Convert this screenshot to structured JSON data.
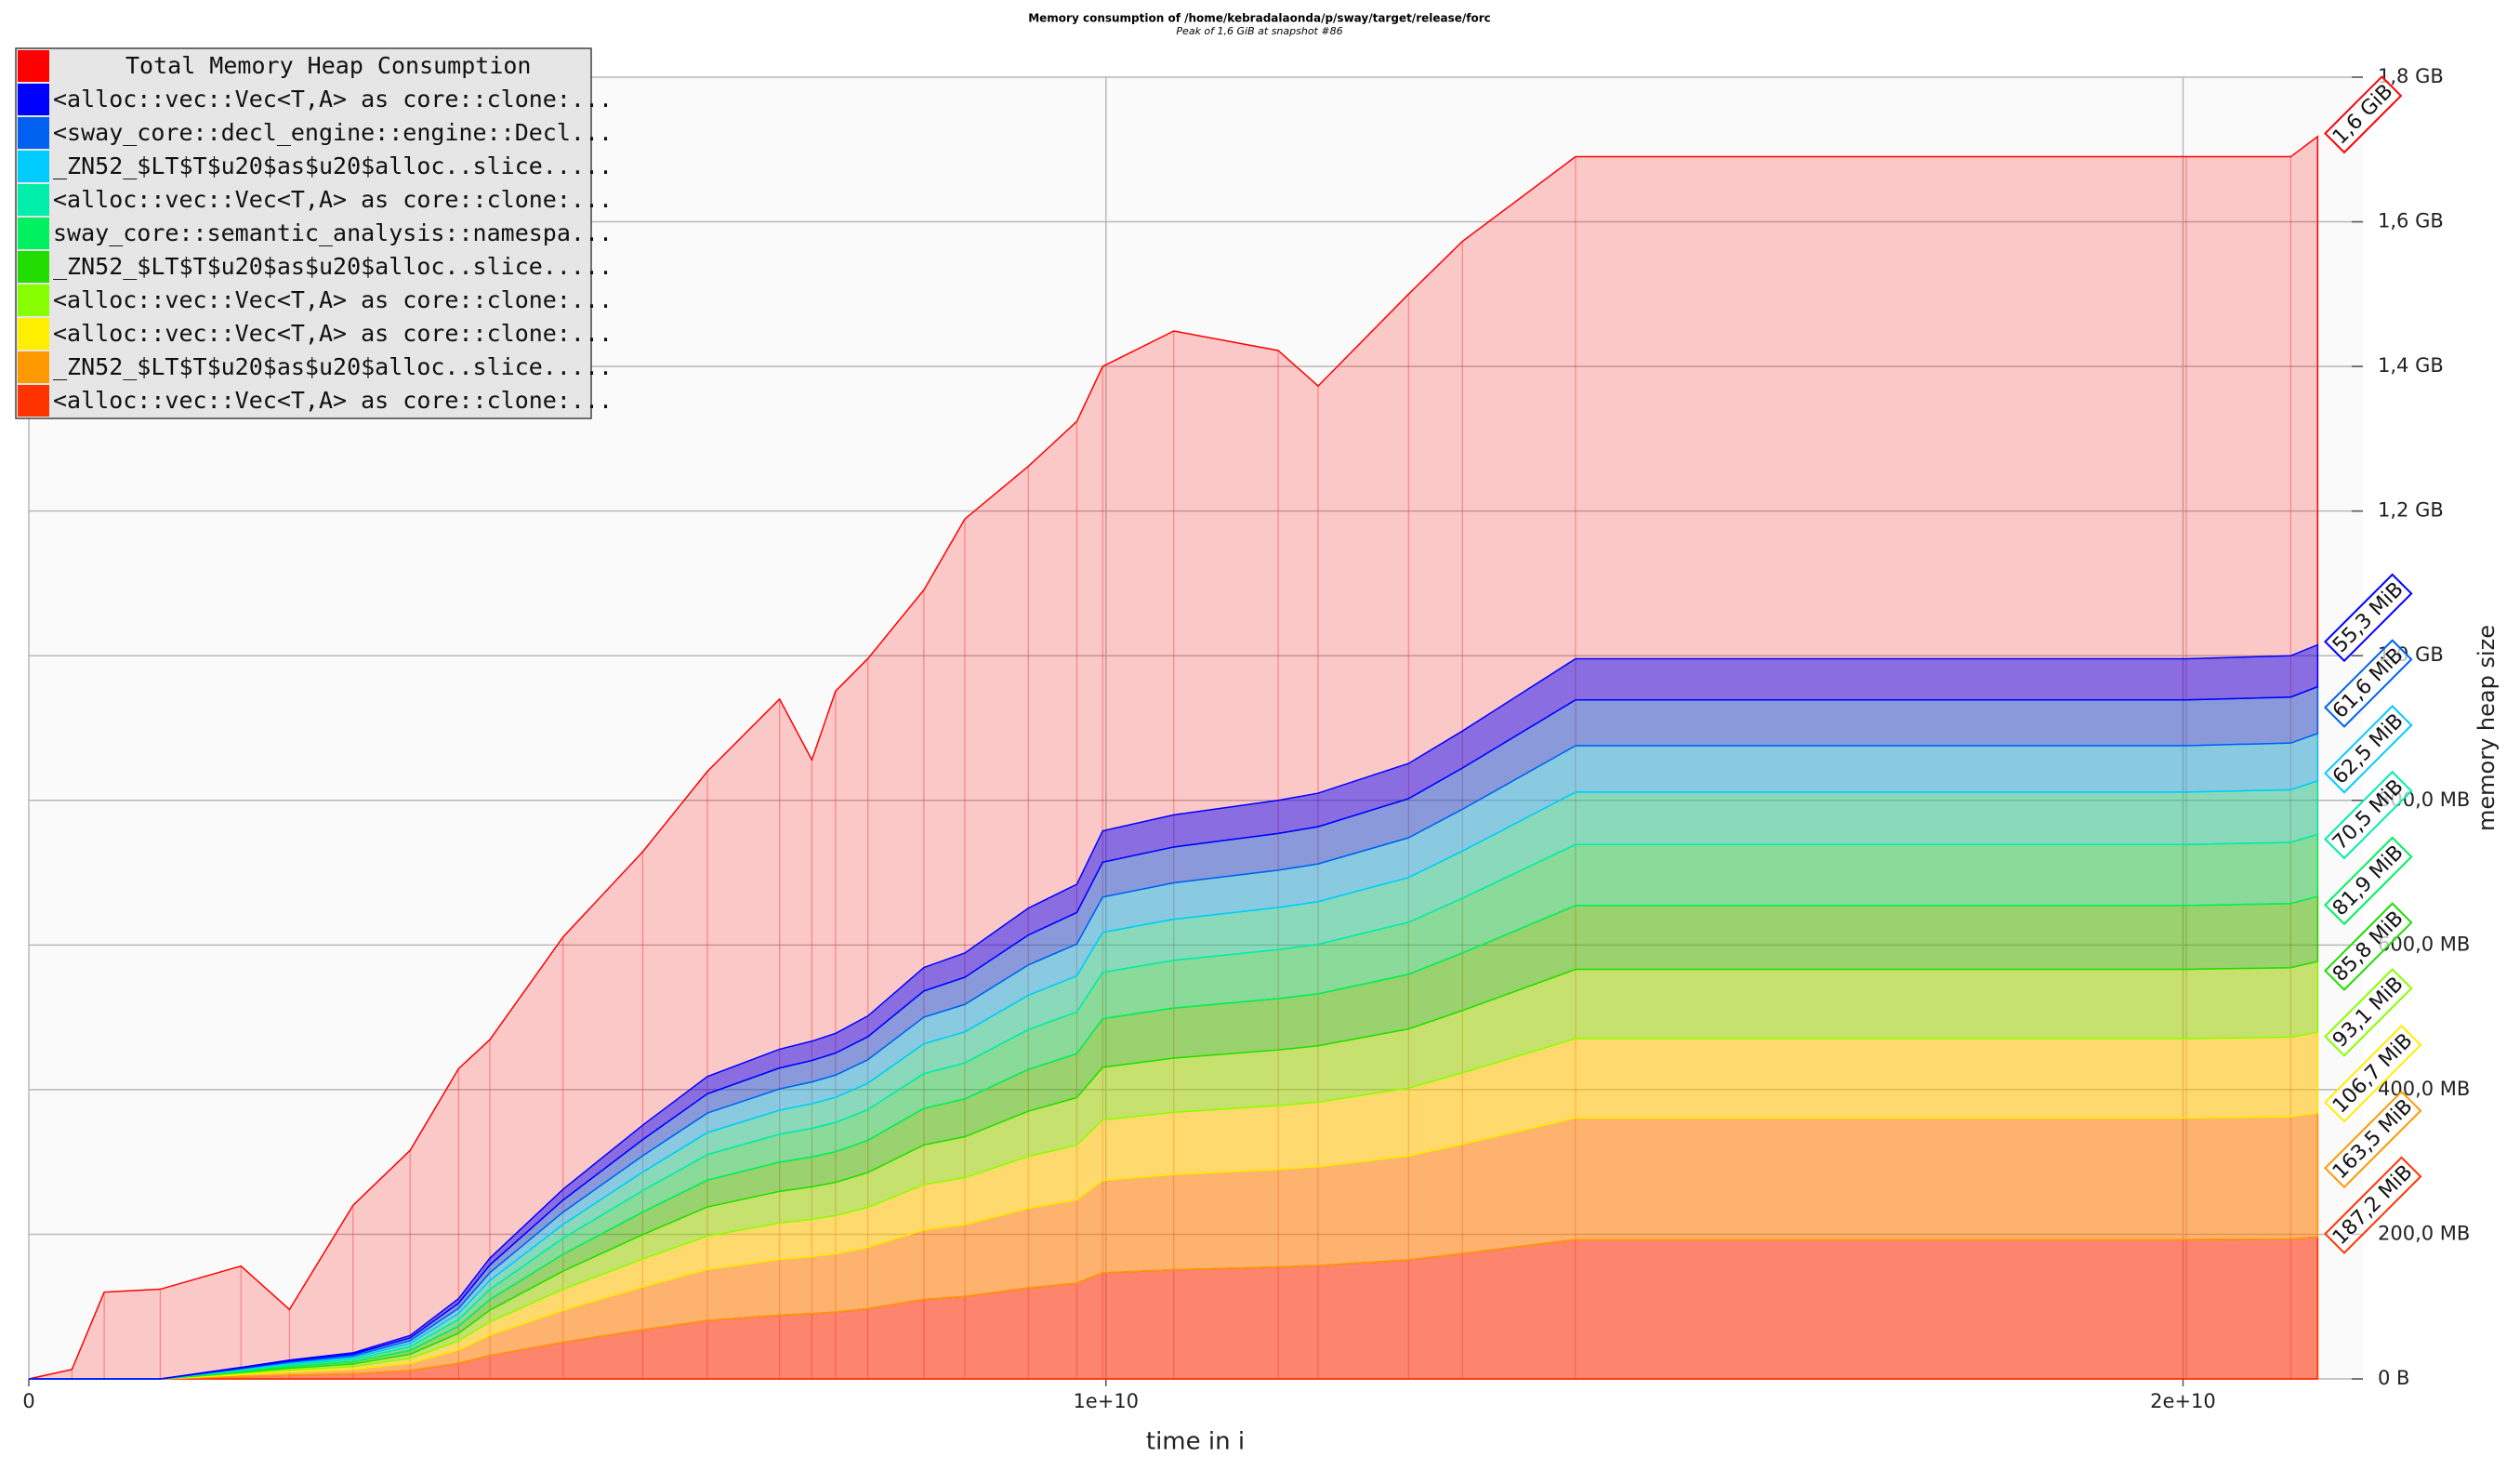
{
  "chart_data": {
    "type": "area",
    "stacked": true,
    "title": "Memory consumption of /home/kebradalaonda/p/sway/target/release/forc",
    "subtitle": "Peak of 1,6 GiB at snapshot #86",
    "x_label": "time in i",
    "y_label": "memory heap size",
    "xlim": [
      0,
      21670000000
    ],
    "ylim": [
      0,
      1800
    ],
    "xticks": [
      0,
      {
        "value": 10000000000,
        "label": "1e+10"
      },
      {
        "value": 20000000000,
        "label": "2e+10"
      }
    ],
    "yticks": [
      {
        "value": 0,
        "label": "0 B"
      },
      {
        "value": 200,
        "label": "200,0 MB"
      },
      {
        "value": 400,
        "label": "400,0 MB"
      },
      {
        "value": 600,
        "label": "600,0 MB"
      },
      {
        "value": 800,
        "label": "800,0 MB"
      },
      {
        "value": 1000,
        "label": "1,0 GB"
      },
      {
        "value": 1200,
        "label": "1,2 GB"
      },
      {
        "value": 1400,
        "label": "1,4 GB"
      },
      {
        "value": 1600,
        "label": "1,6 GB"
      },
      {
        "value": 1800,
        "label": "1,8 GB"
      }
    ],
    "grid": true,
    "legend": "top-left",
    "x": [
      0,
      400000000,
      700000000,
      1220000000,
      1970000000,
      2420000000,
      3010000000,
      3540000000,
      3990000000,
      4280000000,
      4960000000,
      5700000000,
      6300000000,
      6970000000,
      7270000000,
      7490000000,
      7790000000,
      8310000000,
      8690000000,
      9280000000,
      9730000000,
      9970000000,
      10630000000,
      11600000000,
      11970000000,
      12810000000,
      13310000000,
      14360000000,
      20030000000,
      21000000000,
      21250000000
    ],
    "total": {
      "name": "Total Memory Heap Consumption",
      "color": "#ff0000",
      "values": [
        0,
        13,
        120,
        124,
        156,
        96,
        240,
        316,
        429,
        469,
        611,
        729,
        840,
        940,
        856,
        951,
        996,
        1091,
        1189,
        1262,
        1324,
        1400,
        1449,
        1422,
        1373,
        1500,
        1573,
        1690,
        1690,
        1690,
        1718
      ],
      "value_labels": [
        null,
        null,
        null,
        null,
        null,
        null,
        null,
        null,
        null,
        null,
        null,
        null,
        null,
        null,
        null,
        null,
        null,
        null,
        null,
        null,
        null,
        null,
        null,
        null,
        null,
        null,
        null,
        null,
        null,
        null,
        "1,6 GiB"
      ]
    },
    "series": [
      {
        "name": "<alloc::vec::Vec<T,A> as core::clone:...",
        "color": "#0000ff",
        "values": [
          0,
          0,
          0,
          0,
          0.9,
          1.5,
          2.1,
          3.4,
          6.3,
          9.5,
          15.0,
          20.0,
          23.9,
          26.0,
          26.7,
          27.3,
          28.7,
          32.5,
          33.6,
          37.2,
          39.1,
          43.3,
          44.5,
          45.7,
          46.3,
          48.6,
          51.2,
          56.9,
          56.9,
          57.1,
          58.0
        ],
        "value_labels": [
          null,
          null,
          null,
          null,
          null,
          null,
          null,
          null,
          null,
          null,
          null,
          null,
          null,
          null,
          null,
          null,
          null,
          null,
          null,
          null,
          null,
          null,
          null,
          null,
          null,
          null,
          null,
          null,
          null,
          null,
          "55,3 MiB"
        ]
      },
      {
        "name": "<sway_core::decl_engine::engine::Decl...",
        "color": "#0060f0",
        "values": [
          0,
          0,
          0,
          0,
          1.0,
          1.7,
          2.3,
          3.8,
          7.1,
          10.6,
          16.7,
          22.3,
          26.6,
          29.0,
          29.7,
          30.4,
          31.9,
          36.2,
          37.5,
          41.4,
          43.5,
          48.2,
          49.6,
          50.9,
          51.5,
          54.1,
          57.0,
          63.3,
          63.3,
          63.6,
          64.6
        ],
        "value_labels": [
          null,
          null,
          null,
          null,
          null,
          null,
          null,
          null,
          null,
          null,
          null,
          null,
          null,
          null,
          null,
          null,
          null,
          null,
          null,
          null,
          null,
          null,
          null,
          null,
          null,
          null,
          null,
          null,
          null,
          null,
          "61,6 MiB"
        ]
      },
      {
        "name": "_ZN52_$LT$T$u20$as$u20$alloc..slice.....",
        "color": "#00ccff",
        "values": [
          0,
          0,
          0,
          0,
          1.0,
          1.7,
          2.3,
          3.9,
          7.2,
          10.8,
          16.9,
          22.6,
          27.0,
          29.4,
          30.1,
          30.8,
          32.4,
          36.7,
          38.0,
          42.0,
          44.1,
          48.9,
          50.3,
          51.6,
          52.2,
          54.9,
          57.8,
          64.2,
          64.2,
          64.5,
          65.5
        ],
        "value_labels": [
          null,
          null,
          null,
          null,
          null,
          null,
          null,
          null,
          null,
          null,
          null,
          null,
          null,
          null,
          null,
          null,
          null,
          null,
          null,
          null,
          null,
          null,
          null,
          null,
          null,
          null,
          null,
          null,
          null,
          null,
          "62,5 MiB"
        ]
      },
      {
        "name": "<alloc::vec::Vec<T,A> as core::clone:...",
        "color": "#00eeaa",
        "values": [
          0,
          0,
          0,
          0,
          1.2,
          1.9,
          2.6,
          4.4,
          8.1,
          12.2,
          19.1,
          25.6,
          30.4,
          33.2,
          34.0,
          34.8,
          36.5,
          41.4,
          42.9,
          47.4,
          49.8,
          55.2,
          56.8,
          58.2,
          59.0,
          62.0,
          65.2,
          72.5,
          72.5,
          72.8,
          73.9
        ],
        "value_labels": [
          null,
          null,
          null,
          null,
          null,
          null,
          null,
          null,
          null,
          null,
          null,
          null,
          null,
          null,
          null,
          null,
          null,
          null,
          null,
          null,
          null,
          null,
          null,
          null,
          null,
          null,
          null,
          null,
          null,
          null,
          "70,5 MiB"
        ]
      },
      {
        "name": "sway_core::semantic_analysis::namespa...",
        "color": "#00f060",
        "values": [
          0,
          0,
          0,
          0,
          1.4,
          2.2,
          3.0,
          5.1,
          9.4,
          14.1,
          22.2,
          29.7,
          35.4,
          38.6,
          39.5,
          40.4,
          42.5,
          48.1,
          49.8,
          55.1,
          57.9,
          64.1,
          66.0,
          67.7,
          68.5,
          72.0,
          75.8,
          84.3,
          84.3,
          84.6,
          85.9
        ],
        "value_labels": [
          null,
          null,
          null,
          null,
          null,
          null,
          null,
          null,
          null,
          null,
          null,
          null,
          null,
          null,
          null,
          null,
          null,
          null,
          null,
          null,
          null,
          null,
          null,
          null,
          null,
          null,
          null,
          null,
          null,
          null,
          "81,9 MiB"
        ]
      },
      {
        "name": "_ZN52_$LT$T$u20$as$u20$alloc..slice.....",
        "color": "#22dd00",
        "values": [
          0,
          0,
          0,
          0,
          1.4,
          2.3,
          3.2,
          5.3,
          9.8,
          14.8,
          23.2,
          31.1,
          37.1,
          40.4,
          41.4,
          42.4,
          44.5,
          50.5,
          52.2,
          57.7,
          60.7,
          67.2,
          69.2,
          71.0,
          71.8,
          75.5,
          79.5,
          88.3,
          88.3,
          88.7,
          90.0
        ],
        "value_labels": [
          null,
          null,
          null,
          null,
          null,
          null,
          null,
          null,
          null,
          null,
          null,
          null,
          null,
          null,
          null,
          null,
          null,
          null,
          null,
          null,
          null,
          null,
          null,
          null,
          null,
          null,
          null,
          null,
          null,
          null,
          "85,8 MiB"
        ]
      },
      {
        "name": "<alloc::vec::Vec<T,A> as core::clone:...",
        "color": "#88ff00",
        "values": [
          0,
          0,
          0,
          0,
          1.5,
          2.5,
          3.5,
          5.8,
          10.7,
          16.0,
          25.2,
          33.7,
          40.2,
          43.8,
          44.9,
          45.9,
          48.2,
          54.7,
          56.6,
          62.6,
          65.7,
          72.8,
          75.0,
          76.9,
          77.8,
          81.8,
          86.1,
          95.7,
          95.7,
          96.1,
          97.6
        ],
        "value_labels": [
          null,
          null,
          null,
          null,
          null,
          null,
          null,
          null,
          null,
          null,
          null,
          null,
          null,
          null,
          null,
          null,
          null,
          null,
          null,
          null,
          null,
          null,
          null,
          null,
          null,
          null,
          null,
          null,
          null,
          null,
          "93,1 MiB"
        ]
      },
      {
        "name": "<alloc::vec::Vec<T,A> as core::clone:...",
        "color": "#ffee00",
        "values": [
          0,
          0,
          0,
          0,
          1.8,
          2.9,
          4.0,
          6.6,
          12.2,
          18.4,
          28.9,
          38.7,
          46.1,
          50.3,
          51.5,
          52.7,
          55.3,
          62.7,
          64.9,
          71.7,
          75.4,
          83.5,
          86.0,
          88.2,
          89.3,
          93.8,
          98.7,
          109.8,
          109.8,
          110.2,
          111.9
        ],
        "value_labels": [
          null,
          null,
          null,
          null,
          null,
          null,
          null,
          null,
          null,
          null,
          null,
          null,
          null,
          null,
          null,
          null,
          null,
          null,
          null,
          null,
          null,
          null,
          null,
          null,
          null,
          null,
          null,
          null,
          null,
          null,
          "106,7 MiB"
        ]
      },
      {
        "name": "_ZN52_$LT$T$u20$as$u20$alloc..slice.....",
        "color": "#ff9900",
        "values": [
          0,
          0,
          0,
          0,
          2.7,
          4.4,
          6.1,
          10.1,
          18.7,
          28.2,
          44.3,
          59.3,
          70.6,
          77.0,
          78.9,
          80.7,
          84.8,
          96.1,
          99.5,
          110.0,
          115.5,
          128.0,
          131.7,
          135.1,
          136.8,
          143.7,
          151.3,
          168.2,
          168.2,
          168.9,
          171.4
        ],
        "value_labels": [
          null,
          null,
          null,
          null,
          null,
          null,
          null,
          null,
          null,
          null,
          null,
          null,
          null,
          null,
          null,
          null,
          null,
          null,
          null,
          null,
          null,
          null,
          null,
          null,
          null,
          null,
          null,
          null,
          null,
          null,
          "163,5 MiB"
        ]
      },
      {
        "name": "<alloc::vec::Vec<T,A> as core::clone:...",
        "color": "#ff3300",
        "values": [
          0,
          0,
          0,
          0,
          3.1,
          5.0,
          7.0,
          11.6,
          21.5,
          32.3,
          50.7,
          67.9,
          80.8,
          88.2,
          90.3,
          92.4,
          97.1,
          110.0,
          113.9,
          125.9,
          132.3,
          146.6,
          150.9,
          154.7,
          156.7,
          164.6,
          173.3,
          192.6,
          192.6,
          193.4,
          196.3
        ],
        "value_labels": [
          null,
          null,
          null,
          null,
          null,
          null,
          null,
          null,
          null,
          null,
          null,
          null,
          null,
          null,
          null,
          null,
          null,
          null,
          null,
          null,
          null,
          null,
          null,
          null,
          null,
          null,
          null,
          null,
          null,
          null,
          "187,2 MiB"
        ]
      }
    ]
  }
}
